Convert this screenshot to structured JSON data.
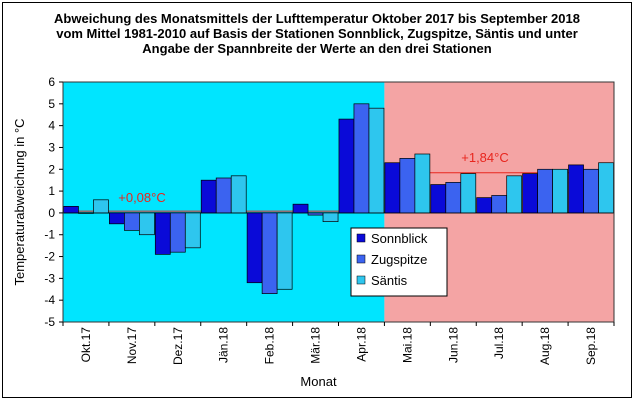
{
  "chart_data": {
    "type": "bar",
    "title": [
      "Abweichung des Monatsmittels der Lufttemperatur Oktober 2017 bis September 2018",
      "vom Mittel 1981-2010 auf Basis der Stationen Sonnblick, Zugspitze, Säntis und unter",
      "Angabe der Spannbreite der Werte an den drei Stationen"
    ],
    "xlabel": "Monat",
    "ylabel": "Temperaturabweichung in °C",
    "ylim": [
      -5,
      6
    ],
    "yticks": [
      "-5",
      "-4",
      "-3",
      "-2",
      "-1",
      "0",
      "1",
      "2",
      "3",
      "4",
      "5",
      "6"
    ],
    "grid": false,
    "categories": [
      "Okt.17",
      "Nov.17",
      "Dez.17",
      "Jän.18",
      "Feb.18",
      "Mär.18",
      "Apr.18",
      "Mai.18",
      "Jun.18",
      "Jul.18",
      "Aug.18",
      "Sep.18"
    ],
    "series": [
      {
        "name": "Sonnblick",
        "color": "#0a0ad8",
        "values": [
          0.3,
          -0.5,
          -1.9,
          1.5,
          -3.2,
          0.4,
          4.3,
          2.3,
          1.3,
          0.7,
          1.8,
          2.2
        ]
      },
      {
        "name": "Zugspitze",
        "color": "#3b63f0",
        "values": [
          0.0,
          -0.8,
          -1.8,
          1.6,
          -3.7,
          -0.1,
          5.0,
          2.5,
          1.4,
          0.8,
          2.0,
          2.0
        ]
      },
      {
        "name": "Säntis",
        "color": "#2ec6ee",
        "values": [
          0.6,
          -1.0,
          -1.6,
          1.7,
          -3.5,
          -0.4,
          4.8,
          2.7,
          1.8,
          1.7,
          2.0,
          2.3
        ]
      }
    ],
    "periods": [
      {
        "label": "+0,08°C",
        "mean": 0.08,
        "color": "#00e5ff",
        "months": [
          "Okt.17",
          "Apr.18"
        ]
      },
      {
        "label": "+1,84°C",
        "mean": 1.84,
        "color": "#f4a4a4",
        "months": [
          "Mai.18",
          "Sep.18"
        ]
      }
    ],
    "legend_position": "center-right",
    "annotation_color": "#e8261e"
  }
}
